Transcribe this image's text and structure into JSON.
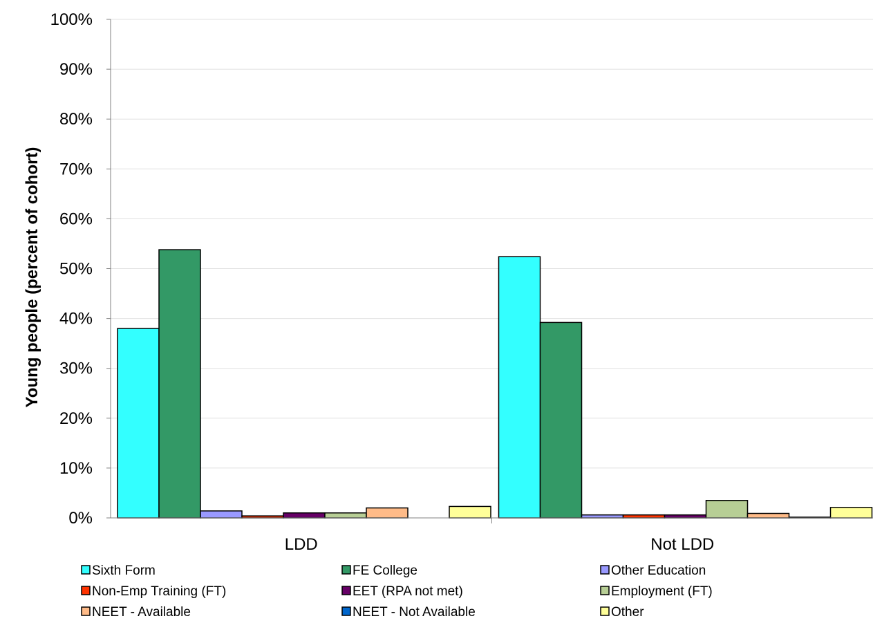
{
  "chart_data": {
    "type": "bar",
    "title": "",
    "xlabel": "",
    "ylabel": "Young people (percent of cohort)",
    "ylim": [
      0,
      100
    ],
    "y_ticks": [
      "0%",
      "10%",
      "20%",
      "30%",
      "40%",
      "50%",
      "60%",
      "70%",
      "80%",
      "90%",
      "100%"
    ],
    "grid": true,
    "legend_position": "bottom",
    "categories": [
      "LDD",
      "Not LDD"
    ],
    "series": [
      {
        "name": "Sixth Form",
        "color": "#33FFFF",
        "values": [
          38.0,
          52.4
        ]
      },
      {
        "name": "FE College",
        "color": "#339966",
        "values": [
          53.8,
          39.2
        ]
      },
      {
        "name": "Other Education",
        "color": "#9999FF",
        "values": [
          1.4,
          0.6
        ]
      },
      {
        "name": "Non-Emp Training (FT)",
        "color": "#FF3300",
        "values": [
          0.4,
          0.6
        ]
      },
      {
        "name": "EET (RPA not met)",
        "color": "#660066",
        "values": [
          1.0,
          0.6
        ]
      },
      {
        "name": "Employment (FT)",
        "color": "#B7CE95",
        "values": [
          1.0,
          3.5
        ]
      },
      {
        "name": "NEET - Available",
        "color": "#FFBB88",
        "values": [
          2.0,
          0.9
        ]
      },
      {
        "name": "NEET - Not Available",
        "color": "#0066CC",
        "values": [
          0.0,
          0.15
        ]
      },
      {
        "name": "Other",
        "color": "#FFFF99",
        "values": [
          2.3,
          2.1
        ]
      }
    ]
  }
}
